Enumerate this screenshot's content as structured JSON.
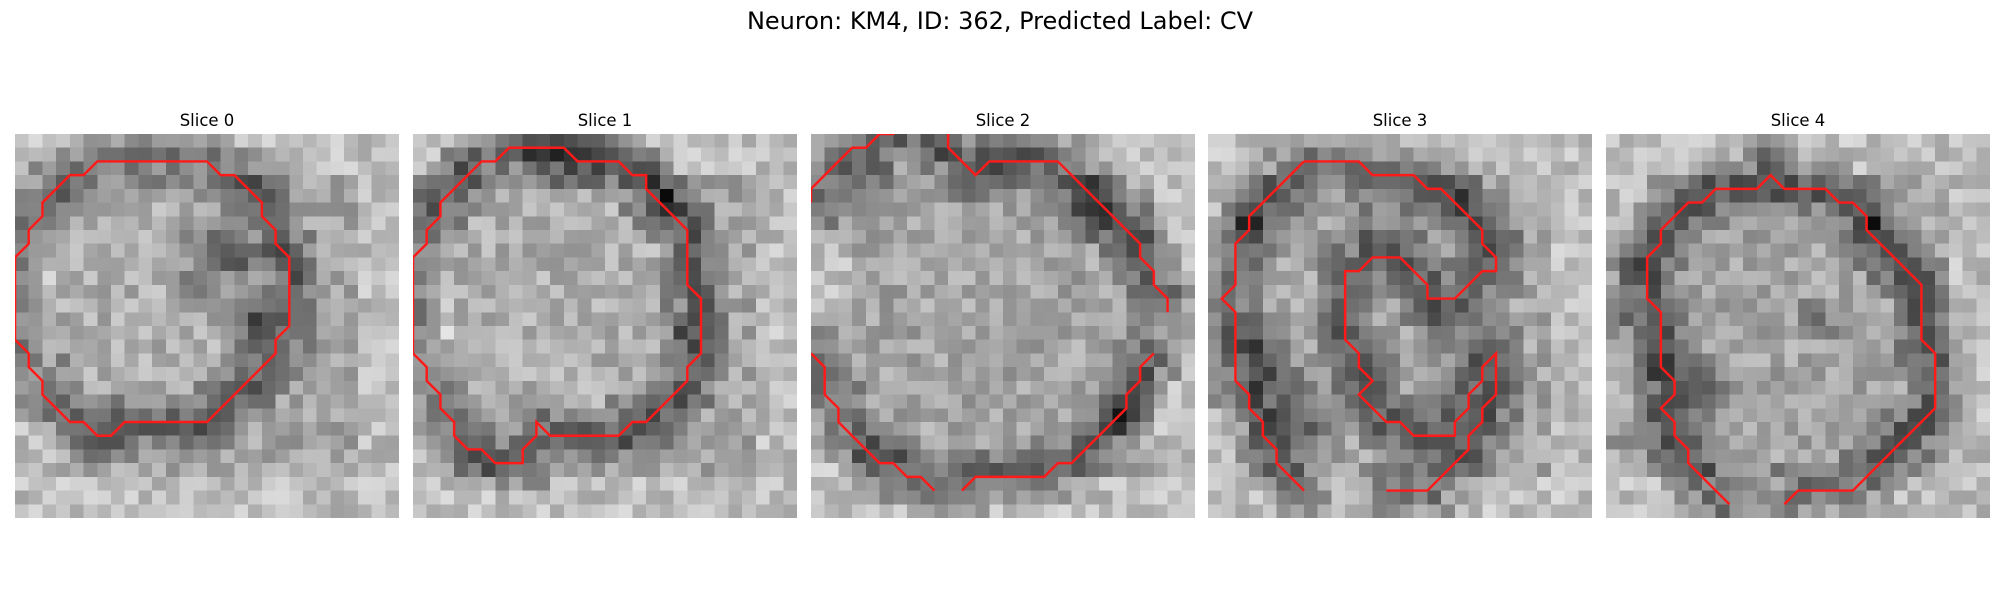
{
  "figure": {
    "title": "Neuron: KM4, ID: 362, Predicted Label: CV"
  },
  "slices": [
    {
      "title": "Slice 0",
      "contour": [
        [
          11,
          2
        ],
        [
          14,
          2
        ],
        [
          15,
          3
        ],
        [
          16,
          3
        ],
        [
          17,
          4
        ],
        [
          18,
          5
        ],
        [
          18,
          6
        ],
        [
          19,
          7
        ],
        [
          19,
          8
        ],
        [
          20,
          9
        ],
        [
          20,
          14
        ],
        [
          19,
          15
        ],
        [
          19,
          16
        ],
        [
          18,
          17
        ],
        [
          17,
          18
        ],
        [
          16,
          19
        ],
        [
          15,
          20
        ],
        [
          14,
          21
        ],
        [
          11,
          21
        ],
        [
          8,
          21
        ],
        [
          7,
          22
        ],
        [
          6,
          22
        ],
        [
          5,
          21
        ],
        [
          4,
          21
        ],
        [
          3,
          20
        ],
        [
          2,
          19
        ],
        [
          2,
          18
        ],
        [
          1,
          17
        ],
        [
          1,
          16
        ],
        [
          0,
          15
        ],
        [
          0,
          11
        ],
        [
          0,
          9
        ],
        [
          1,
          8
        ],
        [
          1,
          7
        ],
        [
          2,
          6
        ],
        [
          2,
          5
        ],
        [
          3,
          4
        ],
        [
          4,
          3
        ],
        [
          5,
          3
        ],
        [
          6,
          2
        ],
        [
          9,
          2
        ],
        [
          11,
          2
        ]
      ],
      "dark": [
        [
          14,
          7,
          3
        ],
        [
          15,
          8,
          2
        ],
        [
          16,
          9,
          2
        ],
        [
          16,
          12,
          3
        ],
        [
          13,
          10,
          2
        ],
        [
          17,
          14,
          2
        ]
      ]
    },
    {
      "title": "Slice 1",
      "contour": [
        [
          9,
          1
        ],
        [
          11,
          1
        ],
        [
          12,
          2
        ],
        [
          14,
          2
        ],
        [
          15,
          2
        ],
        [
          16,
          3
        ],
        [
          17,
          3
        ],
        [
          17,
          4
        ],
        [
          18,
          5
        ],
        [
          19,
          6
        ],
        [
          20,
          7
        ],
        [
          20,
          11
        ],
        [
          21,
          12
        ],
        [
          21,
          16
        ],
        [
          20,
          17
        ],
        [
          20,
          18
        ],
        [
          19,
          19
        ],
        [
          18,
          20
        ],
        [
          17,
          21
        ],
        [
          16,
          21
        ],
        [
          15,
          22
        ],
        [
          12,
          22
        ],
        [
          10,
          22
        ],
        [
          9,
          21
        ],
        [
          9,
          22
        ],
        [
          8,
          23
        ],
        [
          8,
          24
        ],
        [
          6,
          24
        ],
        [
          5,
          23
        ],
        [
          4,
          23
        ],
        [
          3,
          22
        ],
        [
          3,
          21
        ],
        [
          2,
          20
        ],
        [
          2,
          19
        ],
        [
          1,
          18
        ],
        [
          1,
          17
        ],
        [
          0,
          16
        ],
        [
          0,
          11
        ],
        [
          0,
          9
        ],
        [
          1,
          8
        ],
        [
          1,
          7
        ],
        [
          2,
          6
        ],
        [
          2,
          5
        ],
        [
          3,
          4
        ],
        [
          4,
          3
        ],
        [
          5,
          2
        ],
        [
          6,
          2
        ],
        [
          7,
          1
        ],
        [
          9,
          1
        ]
      ],
      "dark": [
        [
          8,
          1,
          3
        ],
        [
          10,
          1,
          3
        ],
        [
          13,
          1,
          3
        ],
        [
          16,
          2,
          2
        ],
        [
          18,
          4,
          2
        ],
        [
          1,
          4,
          2
        ],
        [
          3,
          2,
          2
        ],
        [
          19,
          14,
          2
        ]
      ]
    },
    {
      "title": "Slice 2",
      "contour": [
        [
          0,
          5
        ],
        [
          0,
          4
        ],
        [
          1,
          3
        ],
        [
          2,
          2
        ],
        [
          3,
          1
        ],
        [
          4,
          1
        ],
        [
          5,
          0
        ],
        [
          6,
          0
        ],
        [
          7,
          -1
        ]
      ],
      "contour2": [
        [
          10,
          -1
        ],
        [
          10,
          1
        ],
        [
          11,
          2
        ],
        [
          12,
          3
        ],
        [
          13,
          2
        ],
        [
          14,
          2
        ],
        [
          15,
          2
        ],
        [
          17,
          2
        ],
        [
          18,
          2
        ],
        [
          19,
          3
        ],
        [
          20,
          4
        ],
        [
          21,
          5
        ],
        [
          22,
          6
        ],
        [
          23,
          7
        ],
        [
          24,
          8
        ],
        [
          24,
          9
        ],
        [
          25,
          10
        ],
        [
          25,
          11
        ],
        [
          26,
          12
        ],
        [
          26,
          13
        ]
      ],
      "contour3": [
        [
          0,
          16
        ],
        [
          1,
          17
        ],
        [
          1,
          18
        ],
        [
          1,
          19
        ],
        [
          2,
          20
        ],
        [
          2,
          21
        ],
        [
          3,
          22
        ],
        [
          4,
          23
        ],
        [
          5,
          24
        ],
        [
          6,
          24
        ],
        [
          7,
          25
        ],
        [
          8,
          25
        ],
        [
          9,
          26
        ],
        [
          9,
          26
        ]
      ],
      "contour4": [
        [
          11,
          26
        ],
        [
          12,
          25
        ],
        [
          17,
          25
        ],
        [
          18,
          24
        ],
        [
          19,
          24
        ],
        [
          20,
          23
        ],
        [
          21,
          22
        ],
        [
          22,
          21
        ],
        [
          23,
          20
        ],
        [
          23,
          19
        ],
        [
          24,
          18
        ],
        [
          24,
          17
        ],
        [
          25,
          16
        ]
      ],
      "dark": [
        [
          2,
          5,
          2
        ],
        [
          20,
          5,
          3
        ],
        [
          4,
          2,
          3
        ],
        [
          8,
          0,
          3
        ],
        [
          14,
          1,
          3
        ],
        [
          22,
          20,
          2
        ]
      ]
    },
    {
      "title": "Slice 3",
      "contour": [
        [
          7,
          2
        ],
        [
          8,
          2
        ],
        [
          9,
          2
        ],
        [
          11,
          2
        ],
        [
          12,
          3
        ],
        [
          13,
          3
        ],
        [
          14,
          3
        ],
        [
          15,
          3
        ],
        [
          16,
          4
        ],
        [
          17,
          4
        ],
        [
          18,
          5
        ],
        [
          19,
          6
        ],
        [
          20,
          7
        ],
        [
          20,
          8
        ],
        [
          21,
          9
        ],
        [
          21,
          10
        ],
        [
          20,
          10
        ],
        [
          19,
          11
        ],
        [
          18,
          12
        ],
        [
          17,
          12
        ],
        [
          16,
          12
        ],
        [
          16,
          11
        ],
        [
          15,
          10
        ],
        [
          14,
          9
        ],
        [
          13,
          9
        ],
        [
          12,
          9
        ],
        [
          11,
          10
        ],
        [
          10,
          10
        ],
        [
          10,
          11
        ],
        [
          10,
          15
        ],
        [
          11,
          16
        ],
        [
          11,
          17
        ],
        [
          12,
          18
        ],
        [
          11,
          19
        ],
        [
          12,
          20
        ],
        [
          13,
          21
        ],
        [
          14,
          21
        ],
        [
          15,
          22
        ],
        [
          18,
          22
        ],
        [
          18,
          21
        ],
        [
          19,
          20
        ],
        [
          19,
          19
        ],
        [
          20,
          18
        ],
        [
          20,
          17
        ],
        [
          21,
          16
        ],
        [
          21,
          17
        ],
        [
          21,
          19
        ],
        [
          20,
          20
        ],
        [
          20,
          21
        ],
        [
          19,
          22
        ],
        [
          19,
          23
        ],
        [
          18,
          24
        ],
        [
          17,
          25
        ],
        [
          16,
          26
        ],
        [
          15,
          26
        ],
        [
          14,
          26
        ],
        [
          13,
          26
        ]
      ],
      "contour2": [
        [
          7,
          2
        ],
        [
          6,
          3
        ],
        [
          5,
          4
        ],
        [
          4,
          5
        ],
        [
          3,
          6
        ],
        [
          3,
          7
        ],
        [
          2,
          8
        ],
        [
          2,
          9
        ],
        [
          2,
          11
        ],
        [
          1,
          12
        ],
        [
          2,
          13
        ],
        [
          2,
          16
        ],
        [
          2,
          18
        ],
        [
          3,
          19
        ],
        [
          3,
          20
        ],
        [
          4,
          21
        ],
        [
          4,
          22
        ],
        [
          5,
          23
        ],
        [
          5,
          24
        ],
        [
          6,
          25
        ],
        [
          7,
          26
        ],
        [
          7,
          26
        ]
      ],
      "dark": [
        [
          3,
          15,
          3
        ],
        [
          5,
          18,
          3
        ],
        [
          7,
          21,
          3
        ],
        [
          2,
          6,
          2
        ],
        [
          18,
          4,
          2
        ],
        [
          16,
          14,
          2
        ],
        [
          11,
          6,
          2
        ]
      ]
    },
    {
      "title": "Slice 4",
      "contour": [
        [
          9,
          4
        ],
        [
          11,
          4
        ],
        [
          12,
          3
        ],
        [
          13,
          4
        ],
        [
          14,
          4
        ],
        [
          16,
          4
        ],
        [
          17,
          5
        ],
        [
          18,
          5
        ],
        [
          19,
          6
        ],
        [
          19,
          7
        ],
        [
          20,
          8
        ],
        [
          21,
          9
        ],
        [
          22,
          10
        ],
        [
          23,
          11
        ],
        [
          23,
          13
        ],
        [
          23,
          15
        ],
        [
          24,
          16
        ],
        [
          24,
          20
        ],
        [
          23,
          21
        ],
        [
          22,
          22
        ],
        [
          21,
          23
        ],
        [
          20,
          24
        ],
        [
          19,
          25
        ],
        [
          18,
          26
        ],
        [
          16,
          26
        ],
        [
          14,
          26
        ],
        [
          13,
          27
        ]
      ],
      "contour2": [
        [
          9,
          4
        ],
        [
          8,
          4
        ],
        [
          7,
          5
        ],
        [
          6,
          5
        ],
        [
          5,
          6
        ],
        [
          4,
          7
        ],
        [
          4,
          8
        ],
        [
          3,
          9
        ],
        [
          3,
          12
        ],
        [
          4,
          13
        ],
        [
          4,
          16
        ],
        [
          4,
          17
        ],
        [
          5,
          18
        ],
        [
          5,
          19
        ],
        [
          4,
          20
        ],
        [
          5,
          21
        ],
        [
          5,
          22
        ],
        [
          6,
          23
        ],
        [
          6,
          24
        ],
        [
          7,
          25
        ],
        [
          8,
          26
        ],
        [
          9,
          27
        ]
      ],
      "dark": [
        [
          1,
          9,
          3
        ],
        [
          0,
          13,
          3
        ],
        [
          2,
          16,
          3
        ],
        [
          7,
          18,
          3
        ],
        [
          11,
          0,
          3
        ],
        [
          19,
          6,
          2
        ],
        [
          15,
          13,
          2
        ],
        [
          1,
          21,
          3
        ]
      ]
    }
  ]
}
